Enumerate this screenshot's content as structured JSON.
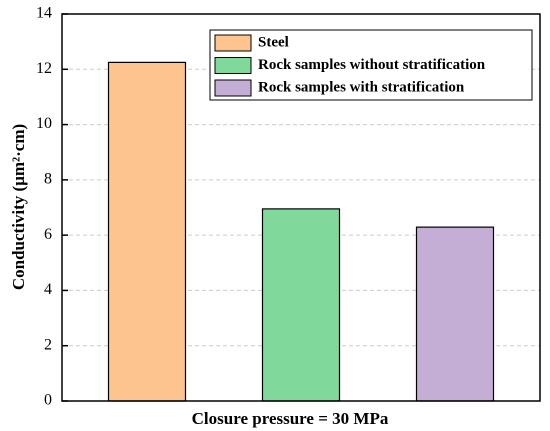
{
  "chart_data": {
    "type": "bar",
    "ylabel": "Conductivity (μm²·cm)",
    "xlabel": "Closure pressure = 30 MPa",
    "categories": [
      null
    ],
    "series": [
      {
        "name": "Steel",
        "color": "#fdc48f",
        "values": [
          12.25
        ]
      },
      {
        "name": "Rock samples without stratification",
        "color": "#80d99a",
        "values": [
          6.95
        ]
      },
      {
        "name": "Rock samples with stratification",
        "color": "#c5aed6",
        "values": [
          6.29
        ]
      }
    ],
    "ylim": [
      0,
      14
    ],
    "yticks": [
      0,
      2,
      4,
      6,
      8,
      10,
      12,
      14
    ],
    "grid": true,
    "legend": "upper right"
  }
}
